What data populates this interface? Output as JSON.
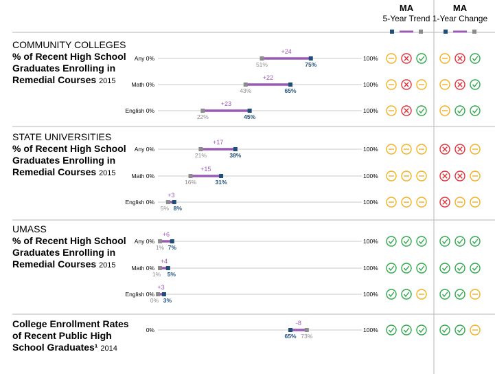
{
  "header": {
    "trend_title": "MA",
    "trend_subtitle": "5-Year Trend",
    "change_title": "MA",
    "change_subtitle": "1-Year Change"
  },
  "colors": {
    "purple": "#9b59b6",
    "blue": "#1f4e79",
    "gray": "#8c8c8c",
    "yellow": "#f2b01e",
    "red": "#e0303a",
    "green": "#2da84a",
    "axis": "#c8c8c8"
  },
  "sections": [
    {
      "title_lines": [
        "COMMUNITY COLLEGES"
      ],
      "subtitle_lines": [
        "% of Recent High School",
        "Graduates Enrolling in",
        "Remedial Courses"
      ],
      "year": "2015"
    },
    {
      "title_lines": [
        "STATE UNIVERSITIES"
      ],
      "subtitle_lines": [
        "% of Recent High School",
        "Graduates Enrolling in",
        "Remedial Courses"
      ],
      "year": "2015"
    },
    {
      "title_lines": [
        "UMASS"
      ],
      "subtitle_lines": [
        "% of Recent High School",
        "Graduates Enrolling in",
        "Remedial Courses"
      ],
      "year": "2015"
    },
    {
      "title_lines": [],
      "subtitle_lines": [
        "College Enrollment Rates",
        "of Recent Public High",
        "School Graduates¹"
      ],
      "year": "2014"
    }
  ],
  "chart_data": {
    "type": "dumbbell",
    "axis_min_label": "0%",
    "axis_max_label": "100%",
    "xlim": [
      0,
      100
    ],
    "rows": [
      {
        "section": 0,
        "label": "Any",
        "start": 51,
        "end": 75,
        "start_label": "51%",
        "end_label": "75%",
        "change": "+24",
        "trend": [
          "yellow",
          "red",
          "green"
        ],
        "one_year": [
          "yellow",
          "red",
          "green"
        ]
      },
      {
        "section": 0,
        "label": "Math",
        "start": 43,
        "end": 65,
        "start_label": "43%",
        "end_label": "65%",
        "change": "+22",
        "trend": [
          "yellow",
          "red",
          "yellow"
        ],
        "one_year": [
          "yellow",
          "red",
          "green"
        ]
      },
      {
        "section": 0,
        "label": "English",
        "start": 22,
        "end": 45,
        "start_label": "22%",
        "end_label": "45%",
        "change": "+23",
        "trend": [
          "yellow",
          "red",
          "green"
        ],
        "one_year": [
          "yellow",
          "green",
          "green"
        ]
      },
      {
        "section": 1,
        "label": "Any",
        "start": 21,
        "end": 38,
        "start_label": "21%",
        "end_label": "38%",
        "change": "+17",
        "trend": [
          "yellow",
          "yellow",
          "yellow"
        ],
        "one_year": [
          "red",
          "red",
          "yellow"
        ]
      },
      {
        "section": 1,
        "label": "Math",
        "start": 16,
        "end": 31,
        "start_label": "16%",
        "end_label": "31%",
        "change": "+15",
        "trend": [
          "yellow",
          "yellow",
          "yellow"
        ],
        "one_year": [
          "red",
          "red",
          "yellow"
        ]
      },
      {
        "section": 1,
        "label": "English",
        "start": 5,
        "end": 8,
        "start_label": "5%",
        "end_label": "8%",
        "change": "+3",
        "trend": [
          "yellow",
          "yellow",
          "yellow"
        ],
        "one_year": [
          "red",
          "yellow",
          "yellow"
        ]
      },
      {
        "section": 2,
        "label": "Any",
        "start": 1,
        "end": 7,
        "start_label": "1%",
        "end_label": "7%",
        "change": "+6",
        "trend": [
          "green",
          "green",
          "green"
        ],
        "one_year": [
          "green",
          "green",
          "green"
        ]
      },
      {
        "section": 2,
        "label": "Math",
        "start": 1,
        "end": 5,
        "start_label": "1%",
        "end_label": "5%",
        "change": "+4",
        "trend": [
          "green",
          "green",
          "green"
        ],
        "one_year": [
          "green",
          "green",
          "green"
        ]
      },
      {
        "section": 2,
        "label": "English",
        "start": 0,
        "end": 3,
        "start_label": "0%",
        "end_label": "3%",
        "change": "+3",
        "trend": [
          "green",
          "green",
          "yellow"
        ],
        "one_year": [
          "green",
          "green",
          "yellow"
        ]
      },
      {
        "section": 3,
        "label": "",
        "start": 73,
        "end": 65,
        "start_label": "73%",
        "end_label": "65%",
        "change": "-8",
        "trend": [
          "green",
          "green",
          "green"
        ],
        "one_year": [
          "green",
          "green",
          "yellow"
        ]
      }
    ]
  }
}
